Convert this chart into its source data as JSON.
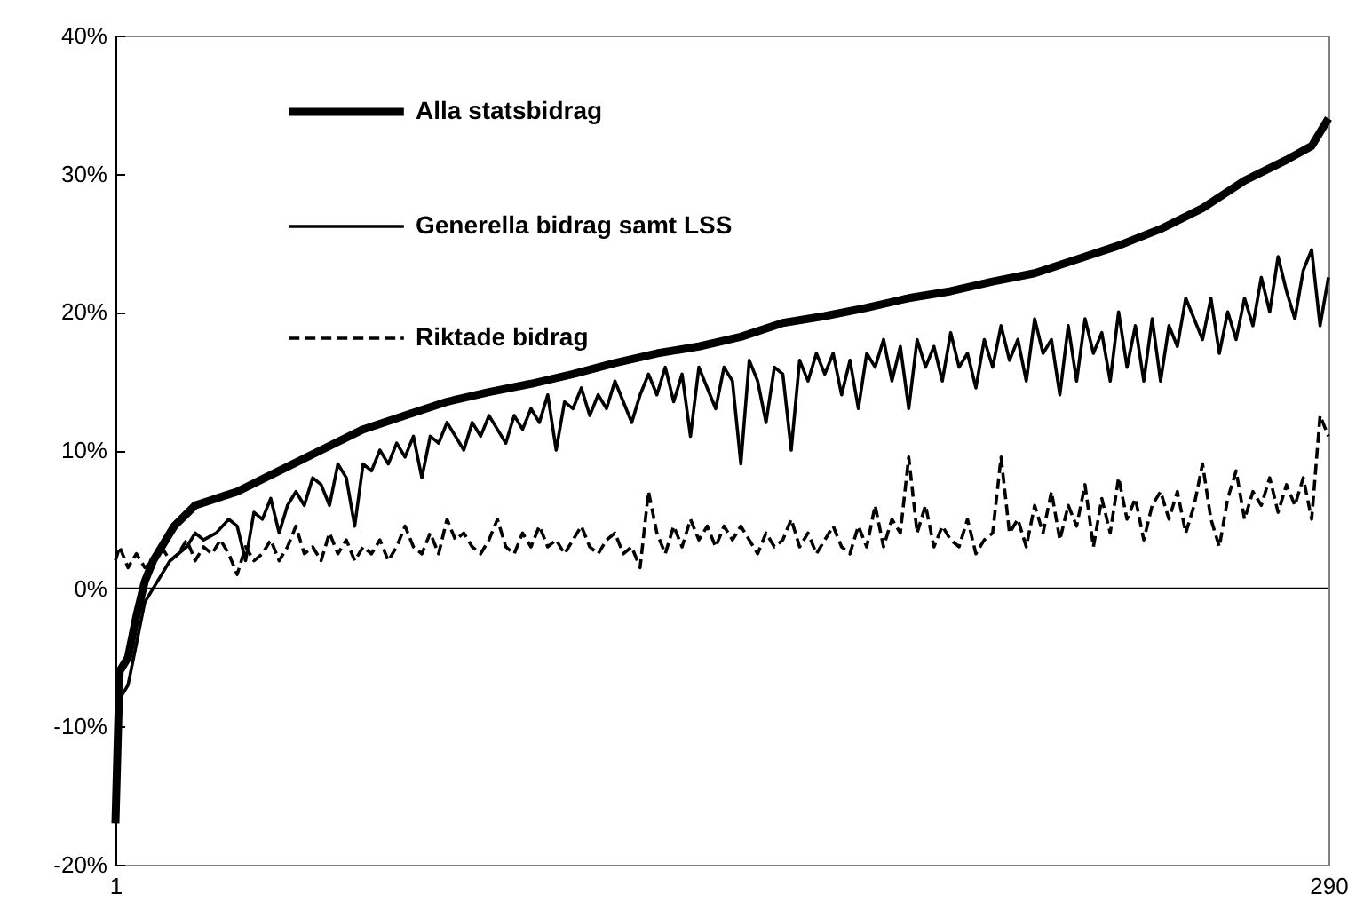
{
  "chart_data": {
    "type": "line",
    "xlim": [
      1,
      290
    ],
    "xticks": [
      1,
      290
    ],
    "ylim": [
      -20,
      40
    ],
    "yticks": [
      {
        "value": -20,
        "label": "-20%"
      },
      {
        "value": -10,
        "label": "-10%"
      },
      {
        "value": 0,
        "label": "0%"
      },
      {
        "value": 10,
        "label": "10%"
      },
      {
        "value": 20,
        "label": "20%"
      },
      {
        "value": 30,
        "label": "30%"
      },
      {
        "value": 40,
        "label": "40%"
      }
    ],
    "grid": false,
    "legend": "top left",
    "marker": "none",
    "ref_lines": [
      {
        "axis": "y",
        "value": 0,
        "label": null,
        "color": "#000000"
      }
    ],
    "series": [
      {
        "name": "Alla statsbidrag",
        "color": "#000000",
        "line_style": "solid",
        "x": [
          1,
          2,
          4,
          6,
          8,
          10,
          12,
          15,
          20,
          25,
          30,
          40,
          50,
          60,
          70,
          80,
          90,
          100,
          110,
          120,
          130,
          140,
          150,
          160,
          170,
          180,
          190,
          200,
          210,
          220,
          230,
          240,
          250,
          260,
          270,
          280,
          286,
          290
        ],
        "values": [
          -17,
          -6,
          -5,
          -2,
          0.5,
          2,
          3,
          4.5,
          6,
          6.5,
          7,
          8.5,
          10,
          11.5,
          12.5,
          13.5,
          14.2,
          14.8,
          15.5,
          16.3,
          17,
          17.5,
          18.2,
          19.2,
          19.7,
          20.3,
          21,
          21.5,
          22.2,
          22.8,
          23.8,
          24.8,
          26,
          27.5,
          29.5,
          31,
          32,
          34
        ]
      },
      {
        "name": "Generella bidrag samt LSS",
        "color": "#000000",
        "line_style": "solid",
        "x": [
          1,
          2,
          4,
          6,
          8,
          10,
          12,
          14,
          16,
          18,
          20,
          22,
          25,
          28,
          30,
          32,
          34,
          36,
          38,
          40,
          42,
          44,
          46,
          48,
          50,
          52,
          54,
          56,
          58,
          60,
          62,
          64,
          66,
          68,
          70,
          72,
          74,
          76,
          78,
          80,
          82,
          84,
          86,
          88,
          90,
          92,
          94,
          96,
          98,
          100,
          102,
          104,
          106,
          108,
          110,
          112,
          114,
          116,
          118,
          120,
          122,
          124,
          126,
          128,
          130,
          132,
          134,
          136,
          138,
          140,
          142,
          144,
          146,
          148,
          150,
          152,
          154,
          156,
          158,
          160,
          162,
          164,
          166,
          168,
          170,
          172,
          174,
          176,
          178,
          180,
          182,
          184,
          186,
          188,
          190,
          192,
          194,
          196,
          198,
          200,
          202,
          204,
          206,
          208,
          210,
          212,
          214,
          216,
          218,
          220,
          222,
          224,
          226,
          228,
          230,
          232,
          234,
          236,
          238,
          240,
          242,
          244,
          246,
          248,
          250,
          252,
          254,
          256,
          258,
          260,
          262,
          264,
          266,
          268,
          270,
          272,
          274,
          276,
          278,
          280,
          282,
          284,
          286,
          288,
          290
        ],
        "values": [
          -15,
          -8,
          -7,
          -4,
          -1,
          0,
          1,
          2,
          2.5,
          3,
          4,
          3.5,
          4,
          5,
          4.5,
          2,
          5.5,
          5,
          6.5,
          4,
          6,
          7,
          6,
          8,
          7.5,
          6,
          9,
          8,
          4.5,
          9,
          8.5,
          10,
          9,
          10.5,
          9.5,
          11,
          8,
          11,
          10.5,
          12,
          11,
          10,
          12,
          11,
          12.5,
          11.5,
          10.5,
          12.5,
          11.5,
          13,
          12,
          14,
          10,
          13.5,
          13,
          14.5,
          12.5,
          14,
          13,
          15,
          13.5,
          12,
          14,
          15.5,
          14,
          16,
          13.5,
          15.5,
          11,
          16,
          14.5,
          13,
          16,
          15,
          9,
          16.5,
          15,
          12,
          16,
          15.5,
          10,
          16.5,
          15,
          17,
          15.5,
          17,
          14,
          16.5,
          13,
          17,
          16,
          18,
          15,
          17.5,
          13,
          18,
          16,
          17.5,
          15,
          18.5,
          16,
          17,
          14.5,
          18,
          16,
          19,
          16.5,
          18,
          15,
          19.5,
          17,
          18,
          14,
          19,
          15,
          19.5,
          17,
          18.5,
          15,
          20,
          16,
          19,
          15,
          19.5,
          15,
          19,
          17.5,
          21,
          19.5,
          18,
          21,
          17,
          20,
          18,
          21,
          19,
          22.5,
          20,
          24,
          21.5,
          19.5,
          23,
          24.5,
          19,
          22.5
        ]
      },
      {
        "name": "Riktade bidrag",
        "color": "#000000",
        "line_style": "dashed",
        "x": [
          1,
          2,
          4,
          6,
          8,
          10,
          12,
          14,
          16,
          18,
          20,
          22,
          24,
          26,
          28,
          30,
          32,
          34,
          36,
          38,
          40,
          42,
          44,
          46,
          48,
          50,
          52,
          54,
          56,
          58,
          60,
          62,
          64,
          66,
          68,
          70,
          72,
          74,
          76,
          78,
          80,
          82,
          84,
          86,
          88,
          90,
          92,
          94,
          96,
          98,
          100,
          102,
          104,
          106,
          108,
          110,
          112,
          114,
          116,
          118,
          120,
          122,
          124,
          126,
          128,
          130,
          132,
          134,
          136,
          138,
          140,
          142,
          144,
          146,
          148,
          150,
          152,
          154,
          156,
          158,
          160,
          162,
          164,
          166,
          168,
          170,
          172,
          174,
          176,
          178,
          180,
          182,
          184,
          186,
          188,
          190,
          192,
          194,
          196,
          198,
          200,
          202,
          204,
          206,
          208,
          210,
          212,
          214,
          216,
          218,
          220,
          222,
          224,
          226,
          228,
          230,
          232,
          234,
          236,
          238,
          240,
          242,
          244,
          246,
          248,
          250,
          252,
          254,
          256,
          258,
          260,
          262,
          264,
          266,
          268,
          270,
          272,
          274,
          276,
          278,
          280,
          282,
          284,
          286,
          288,
          290
        ],
        "values": [
          2,
          3,
          1.5,
          2.5,
          1.5,
          2,
          3,
          2,
          2.5,
          3.5,
          2,
          3,
          2.5,
          3.5,
          2.5,
          1,
          3,
          2,
          2.5,
          3.5,
          2,
          3,
          4.5,
          2.5,
          3,
          2,
          4,
          2.5,
          3.5,
          2,
          3,
          2.5,
          3.5,
          2,
          3,
          4.5,
          3,
          2.5,
          4,
          2.5,
          5,
          3.5,
          4,
          3,
          2.5,
          3.5,
          5,
          3,
          2.5,
          4,
          3,
          4.5,
          3,
          3.5,
          2.5,
          3.5,
          4.5,
          3,
          2.5,
          3.5,
          4,
          2.5,
          3,
          1.5,
          7,
          4,
          2.5,
          4.5,
          3,
          5,
          3.5,
          4.5,
          3,
          4.5,
          3.5,
          4.5,
          3.5,
          2.5,
          4,
          3,
          3.5,
          5,
          3,
          4,
          2.5,
          3.5,
          4.5,
          3,
          2.5,
          4.5,
          3,
          6,
          3,
          5,
          4,
          9.5,
          4,
          6,
          3,
          4.5,
          3.5,
          3,
          5,
          2.5,
          3.5,
          4,
          9.5,
          4,
          5,
          3,
          6,
          4,
          7,
          3.5,
          6,
          4.5,
          7.5,
          3,
          6.5,
          4,
          8,
          5,
          6.5,
          3.5,
          6,
          7,
          5,
          7,
          4,
          6,
          9,
          5,
          3,
          6.5,
          8.5,
          5,
          7,
          6,
          8,
          5.5,
          7.5,
          6,
          8,
          5,
          12.5,
          11
        ]
      }
    ]
  }
}
